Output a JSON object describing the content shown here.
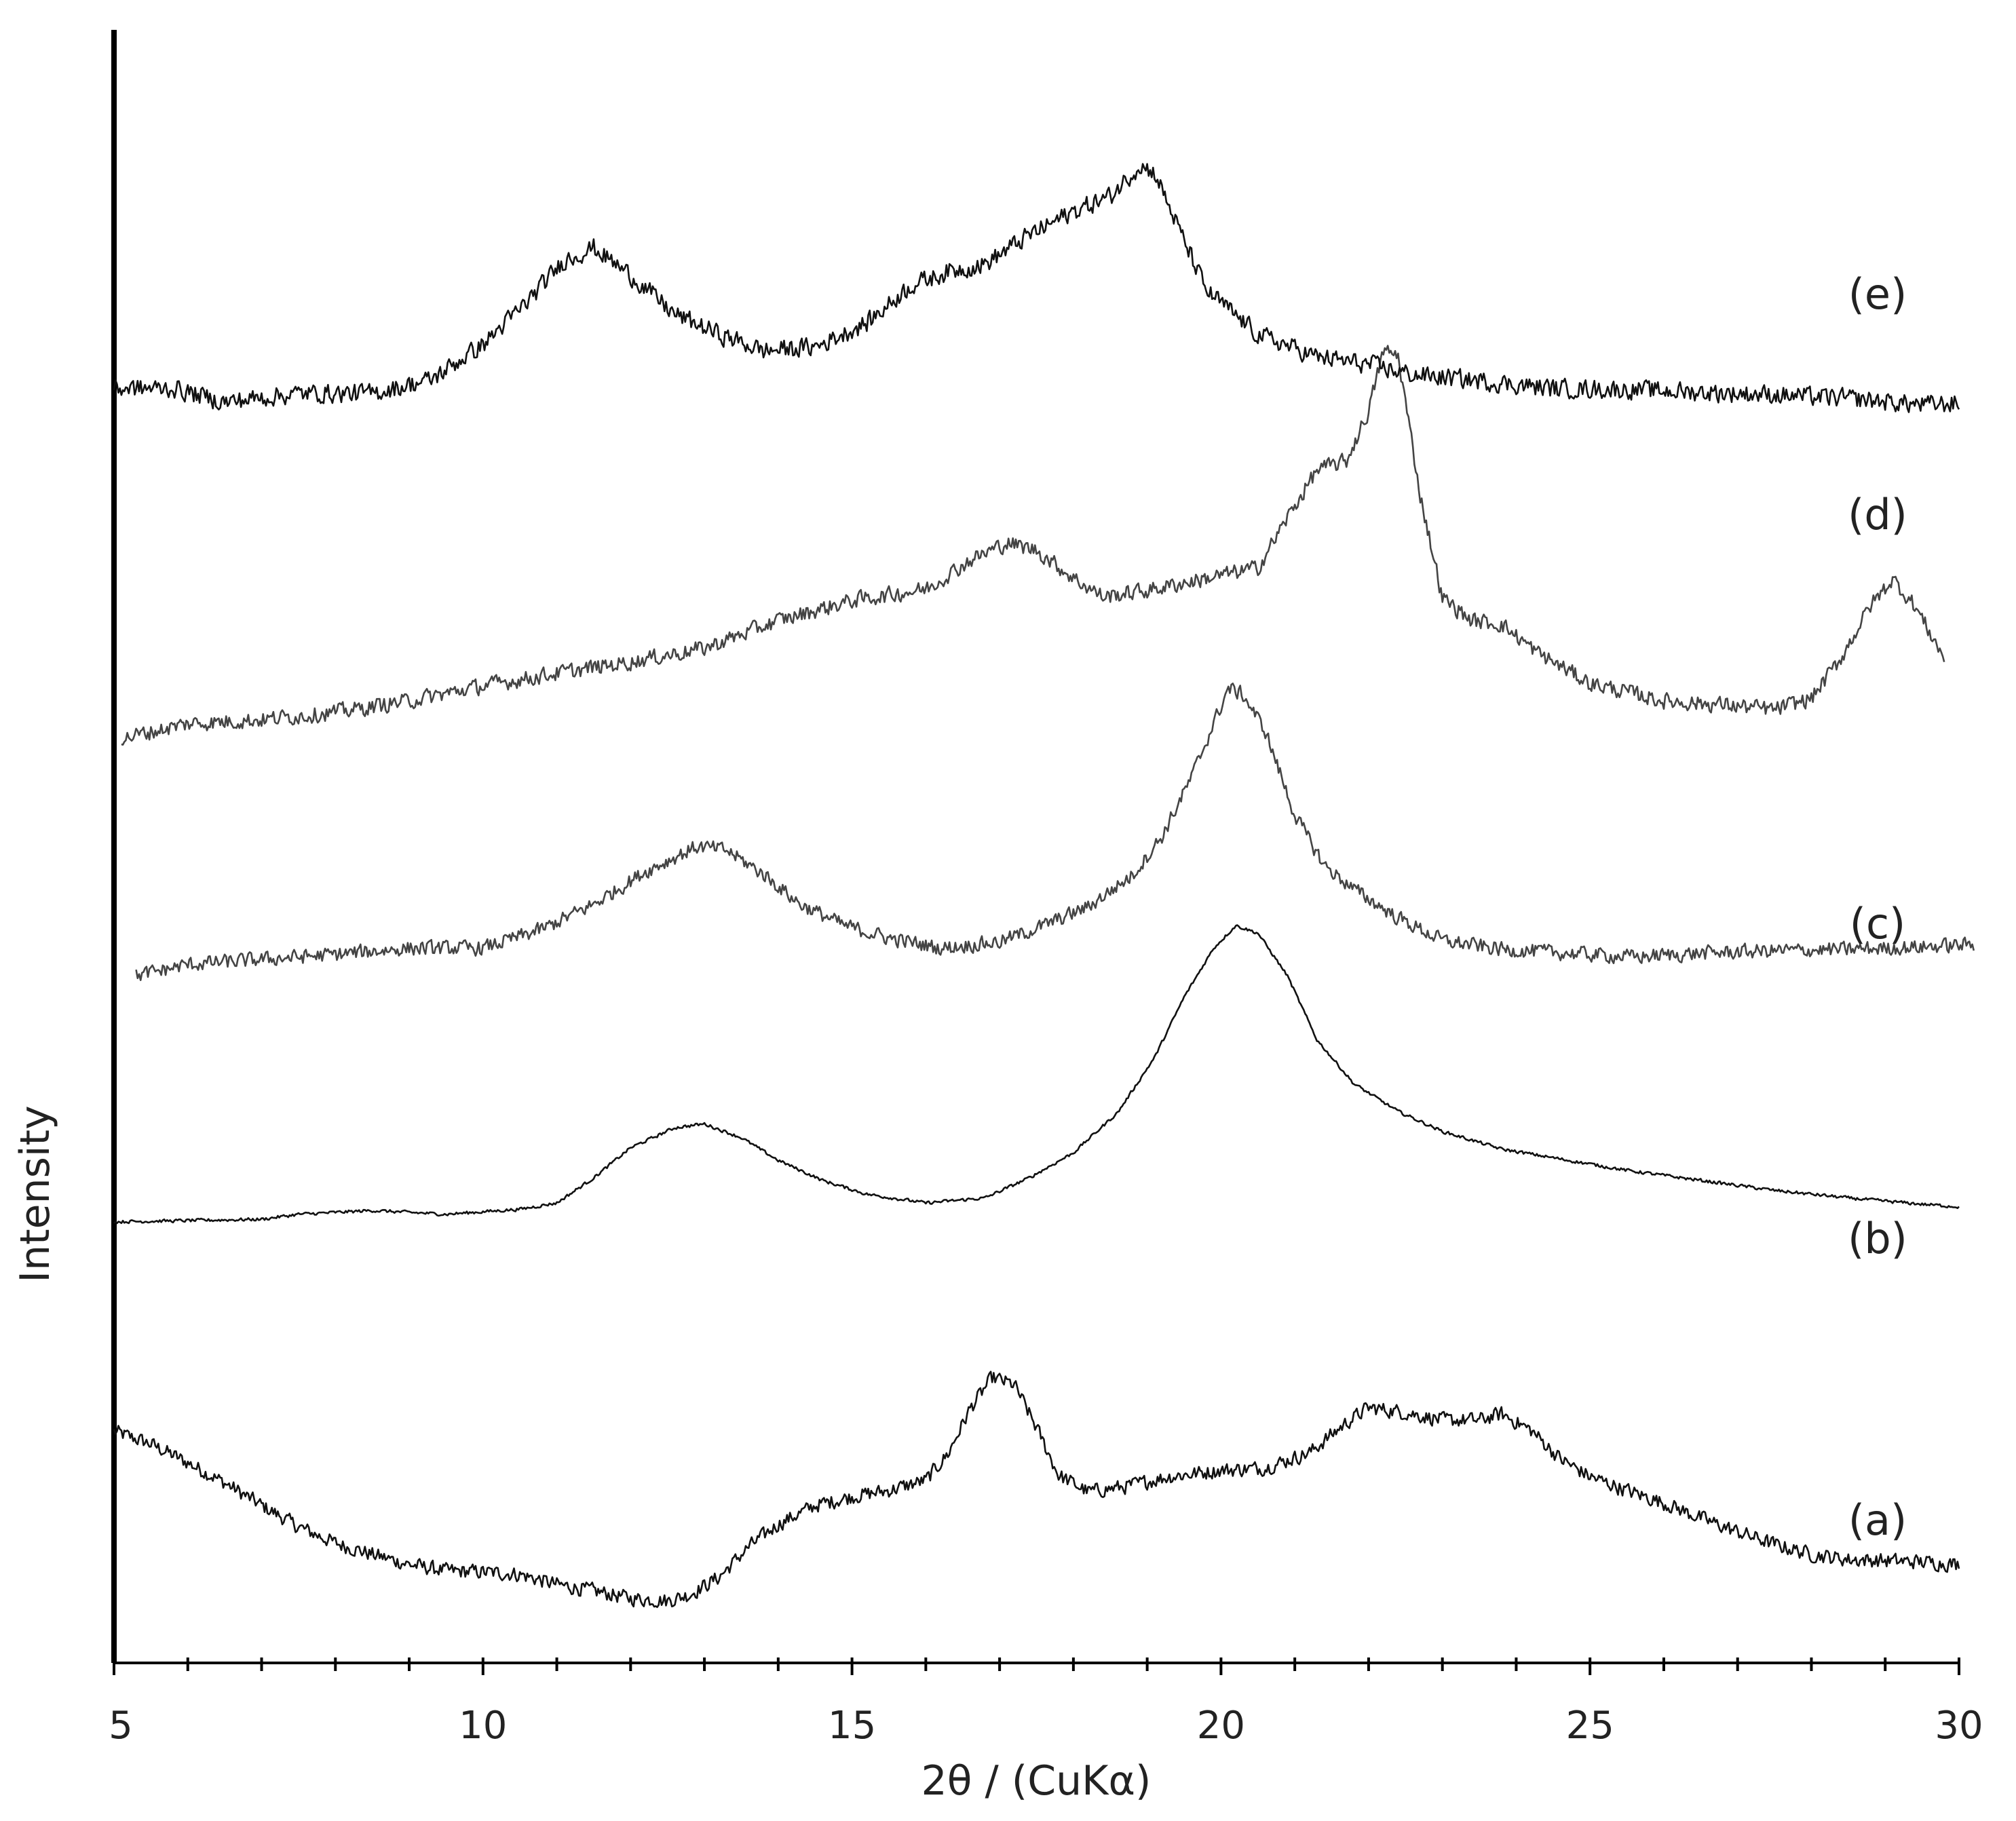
{
  "chart_data": {
    "type": "line",
    "title": "",
    "xlabel": "2θ / (CuKα)",
    "ylabel": "Intensity",
    "xlim": [
      5,
      30
    ],
    "x_major_ticks": [
      5,
      10,
      15,
      20,
      25,
      30
    ],
    "x_tick_labels": [
      "5",
      "10",
      "15",
      "20",
      "25",
      "30"
    ],
    "x_minor_step": 1,
    "y_ticks": "none",
    "offset_stacked": true,
    "grid": false,
    "legend": "none",
    "series": [
      {
        "name": "(a)",
        "noise": 0.55,
        "points": [
          [
            5.0,
            17.2
          ],
          [
            5.5,
            16.2
          ],
          [
            6.0,
            14.7
          ],
          [
            6.5,
            13.1
          ],
          [
            7.0,
            11.3
          ],
          [
            7.5,
            9.6
          ],
          [
            8.0,
            8.3
          ],
          [
            8.5,
            7.4
          ],
          [
            9.0,
            6.6
          ],
          [
            9.5,
            6.1
          ],
          [
            10.0,
            6.0
          ],
          [
            10.5,
            5.8
          ],
          [
            11.0,
            5.0
          ],
          [
            11.5,
            4.5
          ],
          [
            12.0,
            3.9
          ],
          [
            12.5,
            3.7
          ],
          [
            12.8,
            4.2
          ],
          [
            13.2,
            5.6
          ],
          [
            13.6,
            8.0
          ],
          [
            14.0,
            9.8
          ],
          [
            14.5,
            11.3
          ],
          [
            15.0,
            12.0
          ],
          [
            15.5,
            12.5
          ],
          [
            16.0,
            13.3
          ],
          [
            16.3,
            15.4
          ],
          [
            16.6,
            19.0
          ],
          [
            16.9,
            21.5
          ],
          [
            17.2,
            20.9
          ],
          [
            17.5,
            17.5
          ],
          [
            17.8,
            13.7
          ],
          [
            18.2,
            12.4
          ],
          [
            18.7,
            12.8
          ],
          [
            19.3,
            13.6
          ],
          [
            20.0,
            14.1
          ],
          [
            20.6,
            14.3
          ],
          [
            21.2,
            15.5
          ],
          [
            21.7,
            17.9
          ],
          [
            22.0,
            19.1
          ],
          [
            22.5,
            18.7
          ],
          [
            23.0,
            18.1
          ],
          [
            23.5,
            18.1
          ],
          [
            23.8,
            18.6
          ],
          [
            24.2,
            17.3
          ],
          [
            24.6,
            15.0
          ],
          [
            25.0,
            13.6
          ],
          [
            25.5,
            12.5
          ],
          [
            26.0,
            11.5
          ],
          [
            26.5,
            10.3
          ],
          [
            27.0,
            9.2
          ],
          [
            27.5,
            8.2
          ],
          [
            28.0,
            7.4
          ],
          [
            28.5,
            7.0
          ],
          [
            29.0,
            6.9
          ],
          [
            29.5,
            6.8
          ],
          [
            30.0,
            6.6
          ]
        ]
      },
      {
        "name": "(b)",
        "noise": 0.12,
        "points": [
          [
            5.0,
            33.9
          ],
          [
            6.0,
            34.0
          ],
          [
            7.0,
            34.1
          ],
          [
            7.5,
            34.5
          ],
          [
            8.5,
            34.8
          ],
          [
            9.5,
            34.5
          ],
          [
            10.5,
            34.9
          ],
          [
            11.0,
            35.4
          ],
          [
            11.5,
            37.4
          ],
          [
            12.0,
            39.8
          ],
          [
            12.6,
            41.4
          ],
          [
            13.0,
            41.7
          ],
          [
            13.5,
            40.6
          ],
          [
            14.0,
            38.8
          ],
          [
            14.6,
            37.2
          ],
          [
            15.2,
            36.1
          ],
          [
            16.0,
            35.4
          ],
          [
            16.8,
            35.8
          ],
          [
            17.4,
            37.4
          ],
          [
            18.0,
            39.4
          ],
          [
            18.6,
            42.6
          ],
          [
            19.1,
            47.0
          ],
          [
            19.5,
            51.8
          ],
          [
            19.9,
            55.7
          ],
          [
            20.2,
            57.5
          ],
          [
            20.5,
            56.9
          ],
          [
            20.9,
            53.5
          ],
          [
            21.3,
            48.4
          ],
          [
            21.8,
            44.9
          ],
          [
            22.4,
            42.7
          ],
          [
            23.0,
            41.1
          ],
          [
            23.8,
            39.7
          ],
          [
            24.6,
            38.9
          ],
          [
            25.5,
            38.0
          ],
          [
            26.5,
            37.2
          ],
          [
            27.5,
            36.4
          ],
          [
            28.5,
            35.8
          ],
          [
            29.5,
            35.3
          ],
          [
            30.0,
            35.1
          ]
        ]
      },
      {
        "name": "(c)",
        "noise": 0.55,
        "points": [
          [
            5.3,
            53.5
          ],
          [
            6.0,
            54.4
          ],
          [
            7.0,
            54.8
          ],
          [
            8.0,
            55.2
          ],
          [
            9.0,
            55.7
          ],
          [
            10.0,
            55.7
          ],
          [
            10.8,
            57.2
          ],
          [
            11.5,
            59.2
          ],
          [
            12.2,
            61.8
          ],
          [
            12.9,
            63.8
          ],
          [
            13.3,
            63.5
          ],
          [
            13.8,
            61.6
          ],
          [
            14.3,
            59.2
          ],
          [
            14.9,
            57.5
          ],
          [
            15.5,
            56.5
          ],
          [
            16.2,
            55.7
          ],
          [
            17.0,
            56.2
          ],
          [
            17.6,
            57.5
          ],
          [
            18.2,
            59.0
          ],
          [
            18.8,
            61.5
          ],
          [
            19.2,
            64.6
          ],
          [
            19.6,
            69.3
          ],
          [
            19.9,
            73.6
          ],
          [
            20.1,
            76.4
          ],
          [
            20.3,
            75.9
          ],
          [
            20.6,
            73.0
          ],
          [
            21.0,
            66.3
          ],
          [
            21.4,
            62.3
          ],
          [
            21.8,
            60.4
          ],
          [
            22.4,
            58.1
          ],
          [
            23.0,
            56.3
          ],
          [
            23.8,
            55.6
          ],
          [
            24.7,
            55.3
          ],
          [
            25.6,
            55.0
          ],
          [
            26.5,
            55.3
          ],
          [
            27.5,
            55.5
          ],
          [
            28.5,
            55.6
          ],
          [
            29.5,
            55.8
          ],
          [
            30.2,
            56.0
          ]
        ]
      },
      {
        "name": "(d)",
        "noise": 0.6,
        "points": [
          [
            5.1,
            72.4
          ],
          [
            6.0,
            73.6
          ],
          [
            7.0,
            73.9
          ],
          [
            8.0,
            74.5
          ],
          [
            9.0,
            75.4
          ],
          [
            10.0,
            76.6
          ],
          [
            11.0,
            77.6
          ],
          [
            12.0,
            78.5
          ],
          [
            13.0,
            79.6
          ],
          [
            14.0,
            81.8
          ],
          [
            15.0,
            83.4
          ],
          [
            16.0,
            84.3
          ],
          [
            16.6,
            86.6
          ],
          [
            17.1,
            88.0
          ],
          [
            17.5,
            87.4
          ],
          [
            18.0,
            85.2
          ],
          [
            18.4,
            83.7
          ],
          [
            19.0,
            84.2
          ],
          [
            20.0,
            85.4
          ],
          [
            20.5,
            86.0
          ],
          [
            20.9,
            90.0
          ],
          [
            21.3,
            93.8
          ],
          [
            21.7,
            94.5
          ],
          [
            22.0,
            98.5
          ],
          [
            22.2,
            103.3
          ],
          [
            22.4,
            102.9
          ],
          [
            22.7,
            91.8
          ],
          [
            23.0,
            83.6
          ],
          [
            23.4,
            81.8
          ],
          [
            23.8,
            81.5
          ],
          [
            24.3,
            79.2
          ],
          [
            25.0,
            76.8
          ],
          [
            26.0,
            75.4
          ],
          [
            26.8,
            75.1
          ],
          [
            27.5,
            74.7
          ],
          [
            28.0,
            75.6
          ],
          [
            28.4,
            78.8
          ],
          [
            28.8,
            83.0
          ],
          [
            29.1,
            85.1
          ],
          [
            29.4,
            83.0
          ],
          [
            29.8,
            78.8
          ]
        ]
      },
      {
        "name": "(e)",
        "noise": 0.7,
        "points": [
          [
            5.0,
            100.3
          ],
          [
            5.8,
            100.3
          ],
          [
            6.5,
            99.2
          ],
          [
            7.5,
            99.9
          ],
          [
            8.5,
            99.9
          ],
          [
            9.3,
            101.0
          ],
          [
            10.0,
            103.8
          ],
          [
            10.6,
            107.2
          ],
          [
            11.1,
            110.5
          ],
          [
            11.5,
            111.5
          ],
          [
            12.0,
            109.3
          ],
          [
            12.6,
            106.2
          ],
          [
            13.2,
            104.6
          ],
          [
            13.8,
            103.3
          ],
          [
            14.5,
            103.6
          ],
          [
            15.2,
            105.5
          ],
          [
            15.8,
            108.5
          ],
          [
            16.3,
            109.6
          ],
          [
            16.8,
            110.2
          ],
          [
            17.4,
            112.5
          ],
          [
            18.0,
            114.4
          ],
          [
            18.5,
            115.6
          ],
          [
            18.9,
            118.1
          ],
          [
            19.1,
            117.5
          ],
          [
            19.4,
            113.4
          ],
          [
            19.8,
            108.1
          ],
          [
            20.5,
            104.6
          ],
          [
            21.3,
            102.8
          ],
          [
            22.0,
            102.2
          ],
          [
            22.6,
            101.4
          ],
          [
            23.5,
            100.9
          ],
          [
            24.5,
            100.3
          ],
          [
            25.5,
            100.2
          ],
          [
            26.5,
            100.0
          ],
          [
            27.5,
            99.8
          ],
          [
            28.5,
            99.5
          ],
          [
            29.5,
            99.0
          ],
          [
            30.0,
            99.1
          ]
        ]
      }
    ]
  }
}
